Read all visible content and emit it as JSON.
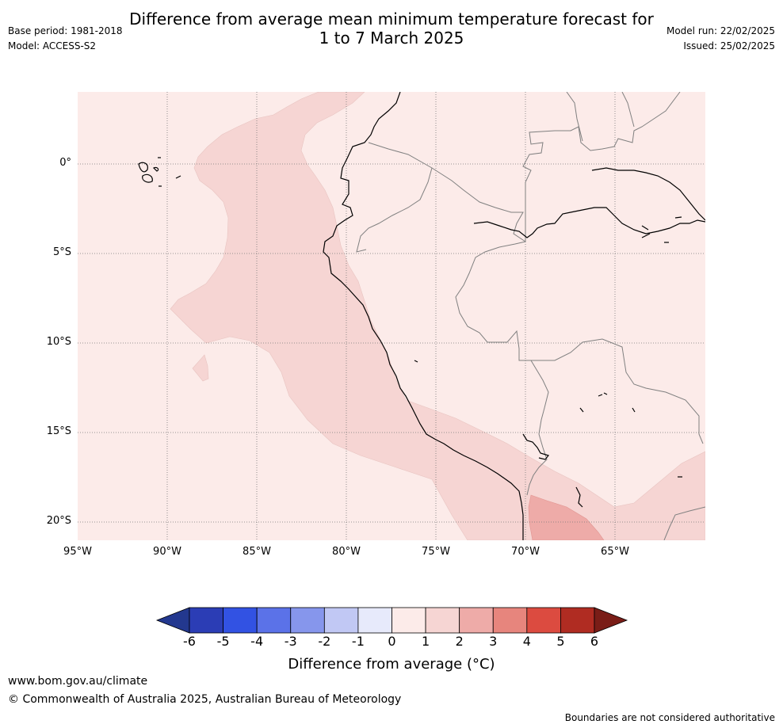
{
  "header": {
    "title_line1": "Difference from average mean minimum temperature forecast for",
    "title_line2": "1 to 7 March 2025",
    "base_period": "Base period: 1981-2018",
    "model": "Model: ACCESS-S2",
    "model_run": "Model run: 22/02/2025",
    "issued": "Issued: 25/02/2025"
  },
  "map": {
    "latitude_labels": [
      "0°",
      "5°S",
      "10°S",
      "15°S",
      "20°S"
    ],
    "longitude_labels": [
      "95°W",
      "90°W",
      "85°W",
      "80°W",
      "75°W",
      "70°W",
      "65°W"
    ],
    "colors": {
      "band_0_1": "#fcebe9",
      "band_1_2": "#f6d5d3",
      "band_2_3": "#eeaba8",
      "coastline": "#000000",
      "borders": "#808080",
      "gridlines": "#777777"
    }
  },
  "colorbar": {
    "title": "Difference from average (°C)",
    "tick_labels": [
      "-6",
      "-5",
      "-4",
      "-3",
      "-2",
      "-1",
      "0",
      "1",
      "2",
      "3",
      "4",
      "5",
      "6"
    ],
    "colors": [
      "#23388f",
      "#2b3db5",
      "#3252e3",
      "#5b72e8",
      "#8696ec",
      "#c1c8f4",
      "#e7eafb",
      "#fcebe9",
      "#f6d5d3",
      "#eeaba8",
      "#e7857d",
      "#dc4b40",
      "#b02c22",
      "#7a1d17"
    ]
  },
  "footer": {
    "url": "www.bom.gov.au/climate",
    "copyright": "© Commonwealth of Australia 2025, Australian Bureau of Meteorology",
    "disclaimer": "Boundaries are not considered authoritative"
  }
}
